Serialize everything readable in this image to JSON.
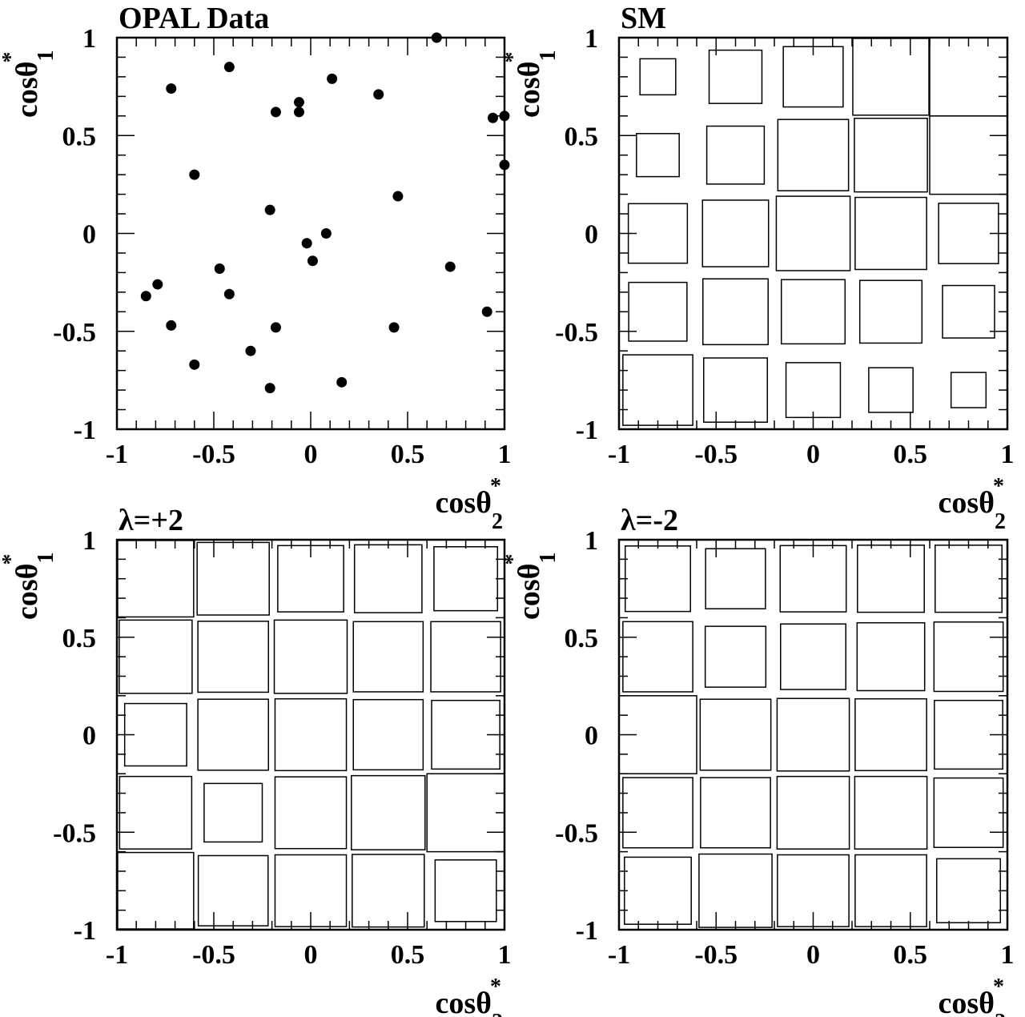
{
  "chart_data": [
    {
      "type": "scatter",
      "title": "OPAL Data",
      "xlabel": "cosθ*2",
      "ylabel": "cosθ*1",
      "xlim": [
        -1,
        1
      ],
      "ylim": [
        -1,
        1
      ],
      "xticks": [
        "-1",
        "-0.5",
        "0",
        "0.5",
        "1"
      ],
      "yticks": [
        "-1",
        "-0.5",
        "0",
        "0.5",
        "1"
      ],
      "points": [
        {
          "x": -0.85,
          "y": -0.32
        },
        {
          "x": -0.79,
          "y": -0.26
        },
        {
          "x": -0.72,
          "y": 0.74
        },
        {
          "x": -0.72,
          "y": -0.47
        },
        {
          "x": -0.6,
          "y": 0.3
        },
        {
          "x": -0.6,
          "y": -0.67
        },
        {
          "x": -0.47,
          "y": -0.18
        },
        {
          "x": -0.42,
          "y": 0.85
        },
        {
          "x": -0.42,
          "y": -0.31
        },
        {
          "x": -0.31,
          "y": -0.6
        },
        {
          "x": -0.21,
          "y": 0.12
        },
        {
          "x": -0.21,
          "y": -0.79
        },
        {
          "x": -0.18,
          "y": 0.62
        },
        {
          "x": -0.18,
          "y": -0.48
        },
        {
          "x": -0.06,
          "y": 0.67
        },
        {
          "x": -0.06,
          "y": 0.62
        },
        {
          "x": -0.02,
          "y": -0.05
        },
        {
          "x": 0.01,
          "y": -0.14
        },
        {
          "x": 0.08,
          "y": 0.0
        },
        {
          "x": 0.11,
          "y": 0.79
        },
        {
          "x": 0.16,
          "y": -0.76
        },
        {
          "x": 0.35,
          "y": 0.71
        },
        {
          "x": 0.43,
          "y": -0.48
        },
        {
          "x": 0.45,
          "y": 0.19
        },
        {
          "x": 0.65,
          "y": 1.0
        },
        {
          "x": 0.72,
          "y": -0.17
        },
        {
          "x": 0.91,
          "y": -0.4
        },
        {
          "x": 0.94,
          "y": 0.59
        },
        {
          "x": 1.0,
          "y": 0.6
        },
        {
          "x": 1.0,
          "y": 0.35
        }
      ]
    },
    {
      "type": "box",
      "title": "SM",
      "xlabel": "cosθ*2",
      "ylabel": "cosθ*1",
      "xlim": [
        -1,
        1
      ],
      "ylim": [
        -1,
        1
      ],
      "xticks": [
        "-1",
        "-0.5",
        "0",
        "0.5",
        "1"
      ],
      "yticks": [
        "-1",
        "-0.5",
        "0",
        "0.5",
        "1"
      ],
      "bins_x": [
        -0.8,
        -0.4,
        0.0,
        0.4,
        0.8
      ],
      "bins_y": [
        0.8,
        0.4,
        0.0,
        -0.4,
        -0.8
      ],
      "relative_size": [
        [
          0.46,
          0.68,
          0.77,
          0.98,
          1.0
        ],
        [
          0.55,
          0.74,
          0.91,
          0.94,
          1.0
        ],
        [
          0.76,
          0.85,
          0.95,
          0.92,
          0.77
        ],
        [
          0.75,
          0.84,
          0.82,
          0.8,
          0.67
        ],
        [
          0.9,
          0.82,
          0.7,
          0.57,
          0.45
        ]
      ]
    },
    {
      "type": "box",
      "title": "λ=+2",
      "xlabel": "cosθ*2",
      "ylabel": "cosθ*1",
      "xlim": [
        -1,
        1
      ],
      "ylim": [
        -1,
        1
      ],
      "xticks": [
        "-1",
        "-0.5",
        "0",
        "0.5",
        "1"
      ],
      "yticks": [
        "-1",
        "-0.5",
        "0",
        "0.5",
        "1"
      ],
      "bins_x": [
        -0.8,
        -0.4,
        0.0,
        0.4,
        0.8
      ],
      "bins_y": [
        0.8,
        0.4,
        0.0,
        -0.4,
        -0.8
      ],
      "relative_size": [
        [
          0.98,
          0.93,
          0.85,
          0.87,
          0.82
        ],
        [
          0.94,
          0.91,
          0.94,
          0.9,
          0.9
        ],
        [
          0.8,
          0.91,
          0.92,
          0.9,
          0.88
        ],
        [
          0.93,
          0.75,
          0.92,
          0.95,
          1.0
        ],
        [
          0.98,
          0.9,
          0.92,
          0.93,
          0.79
        ]
      ]
    },
    {
      "type": "box",
      "title": "λ=-2",
      "xlabel": "cosθ*2",
      "ylabel": "cosθ*1",
      "xlim": [
        -1,
        1
      ],
      "ylim": [
        -1,
        1
      ],
      "xticks": [
        "-1",
        "-0.5",
        "0",
        "0.5",
        "1"
      ],
      "yticks": [
        "-1",
        "-0.5",
        "0",
        "0.5",
        "1"
      ],
      "bins_x": [
        -0.8,
        -0.4,
        0.0,
        0.4,
        0.8
      ],
      "bins_y": [
        0.8,
        0.4,
        0.0,
        -0.4,
        -0.8
      ],
      "relative_size": [
        [
          0.84,
          0.77,
          0.85,
          0.86,
          0.86
        ],
        [
          0.9,
          0.78,
          0.84,
          0.87,
          0.89
        ],
        [
          1.0,
          0.91,
          0.93,
          0.92,
          0.88
        ],
        [
          0.9,
          0.9,
          0.93,
          0.93,
          0.89
        ],
        [
          0.86,
          0.94,
          0.92,
          0.92,
          0.82
        ]
      ]
    }
  ]
}
